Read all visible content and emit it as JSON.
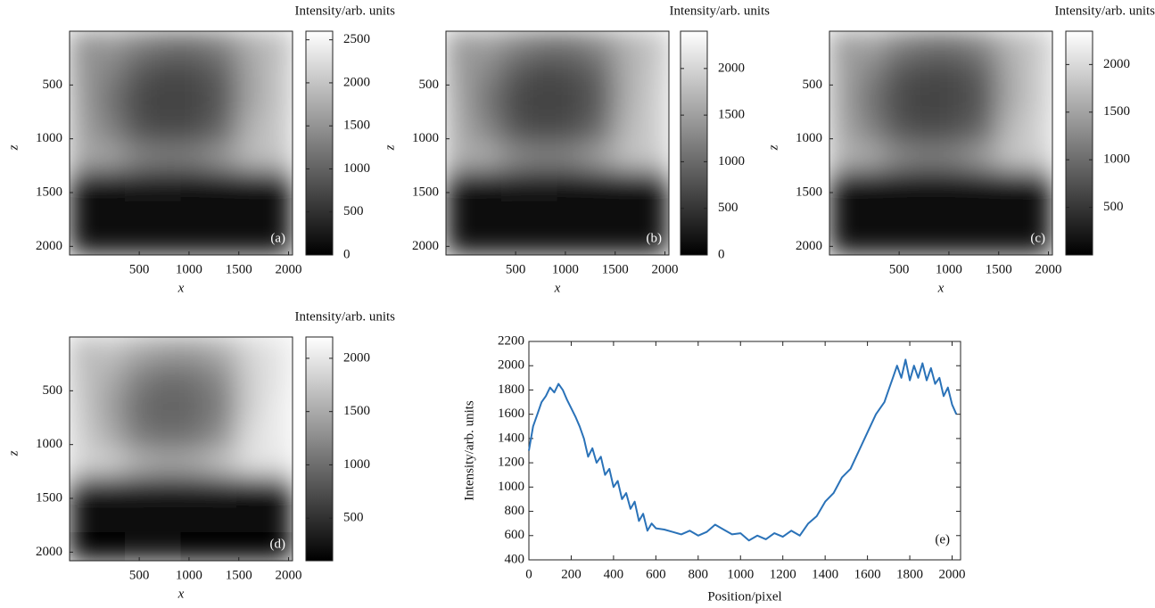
{
  "chart_data": [
    {
      "type": "heatmap",
      "colorbar_label": "Intensity/arb. units",
      "x_label": "x",
      "y_label": "z",
      "annotation": "(a)",
      "colormap": "gray",
      "x": [
        -60,
        220,
        500,
        780,
        1060,
        1340,
        1620,
        1900
      ],
      "y": [
        130,
        390,
        650,
        910,
        1170,
        1430,
        1690,
        1950
      ],
      "values": [
        [
          1500,
          1550,
          1300,
          1150,
          1150,
          1350,
          1750,
          1950
        ],
        [
          1550,
          1300,
          900,
          750,
          800,
          1000,
          1650,
          2000
        ],
        [
          1600,
          1150,
          750,
          650,
          700,
          900,
          1650,
          2000
        ],
        [
          1650,
          1300,
          850,
          750,
          800,
          1050,
          1800,
          2050
        ],
        [
          1700,
          1650,
          1350,
          1250,
          1300,
          1550,
          1900,
          2000
        ],
        [
          150,
          170,
          180,
          180,
          170,
          160,
          150,
          140
        ],
        [
          100,
          110,
          120,
          120,
          110,
          100,
          100,
          90
        ],
        [
          80,
          90,
          90,
          90,
          90,
          80,
          80,
          70
        ]
      ],
      "xlim": [
        -200,
        2040
      ],
      "ylim": [
        0,
        2080
      ],
      "xticks": [
        500,
        1000,
        1500,
        2000
      ],
      "yticks": [
        500,
        1000,
        1500,
        2000
      ],
      "clim": [
        0,
        2600
      ],
      "cticks": [
        0,
        500,
        1000,
        1500,
        2000,
        2500
      ]
    },
    {
      "type": "heatmap",
      "colorbar_label": "Intensity/arb. units",
      "x_label": "x",
      "y_label": "z",
      "annotation": "(b)",
      "colormap": "gray",
      "x": [
        -60,
        220,
        500,
        780,
        1060,
        1340,
        1620,
        1900
      ],
      "y": [
        130,
        390,
        650,
        910,
        1170,
        1430,
        1690,
        1950
      ],
      "values": [
        [
          1450,
          1500,
          1250,
          1100,
          1100,
          1300,
          1650,
          1850
        ],
        [
          1500,
          1250,
          850,
          700,
          750,
          950,
          1600,
          1900
        ],
        [
          1550,
          1100,
          700,
          600,
          650,
          850,
          1600,
          1950
        ],
        [
          1600,
          1250,
          800,
          700,
          750,
          1000,
          1700,
          1950
        ],
        [
          1650,
          1600,
          1300,
          1200,
          1250,
          1500,
          1800,
          1900
        ],
        [
          150,
          160,
          170,
          170,
          160,
          150,
          140,
          130
        ],
        [
          100,
          110,
          110,
          110,
          100,
          100,
          90,
          90
        ],
        [
          80,
          80,
          90,
          90,
          80,
          80,
          70,
          70
        ]
      ],
      "xlim": [
        -200,
        2040
      ],
      "ylim": [
        0,
        2080
      ],
      "xticks": [
        500,
        1000,
        1500,
        2000
      ],
      "yticks": [
        500,
        1000,
        1500,
        2000
      ],
      "clim": [
        0,
        2400
      ],
      "cticks": [
        0,
        500,
        1000,
        1500,
        2000
      ]
    },
    {
      "type": "heatmap",
      "colorbar_label": "Intensity/arb. units",
      "x_label": "x",
      "y_label": "z",
      "annotation": "(c)",
      "colormap": "gray",
      "x": [
        -60,
        220,
        500,
        780,
        1060,
        1340,
        1620,
        1900
      ],
      "y": [
        130,
        390,
        650,
        910,
        1170,
        1430,
        1690,
        1950
      ],
      "values": [
        [
          1450,
          1500,
          1200,
          1050,
          1050,
          1250,
          1650,
          1850
        ],
        [
          1500,
          1200,
          800,
          700,
          700,
          900,
          1550,
          1900
        ],
        [
          1500,
          1050,
          700,
          600,
          650,
          800,
          1550,
          1900
        ],
        [
          1550,
          1200,
          800,
          700,
          750,
          950,
          1700,
          1950
        ],
        [
          1650,
          1550,
          1250,
          1150,
          1200,
          1450,
          1800,
          1900
        ],
        [
          140,
          150,
          160,
          160,
          150,
          140,
          130,
          120
        ],
        [
          100,
          100,
          110,
          110,
          100,
          100,
          90,
          90
        ],
        [
          70,
          80,
          80,
          80,
          80,
          70,
          70,
          70
        ]
      ],
      "xlim": [
        -200,
        2040
      ],
      "ylim": [
        0,
        2080
      ],
      "xticks": [
        500,
        1000,
        1500,
        2000
      ],
      "yticks": [
        500,
        1000,
        1500,
        2000
      ],
      "clim": [
        0,
        2350
      ],
      "cticks": [
        500,
        1000,
        1500,
        2000
      ]
    },
    {
      "type": "heatmap",
      "colorbar_label": "Intensity/arb. units",
      "x_label": "x",
      "y_label": "z",
      "annotation": "(d)",
      "colormap": "gray",
      "x": [
        -60,
        220,
        500,
        780,
        1060,
        1340,
        1620,
        1900
      ],
      "y": [
        130,
        390,
        650,
        910,
        1170,
        1430,
        1690,
        1950
      ],
      "values": [
        [
          1650,
          1700,
          1500,
          1400,
          1400,
          1550,
          1850,
          2000
        ],
        [
          1700,
          1500,
          1150,
          1000,
          1050,
          1250,
          1800,
          2000
        ],
        [
          1750,
          1400,
          1000,
          900,
          950,
          1150,
          1800,
          2050
        ],
        [
          1800,
          1500,
          1100,
          1000,
          1050,
          1300,
          1900,
          2050
        ],
        [
          1850,
          1800,
          1550,
          1450,
          1500,
          1700,
          1950,
          2000
        ],
        [
          250,
          260,
          270,
          270,
          260,
          250,
          240,
          230
        ],
        [
          180,
          190,
          190,
          190,
          180,
          180,
          170,
          170
        ],
        [
          150,
          150,
          160,
          160,
          150,
          150,
          140,
          140
        ]
      ],
      "xlim": [
        -200,
        2040
      ],
      "ylim": [
        0,
        2080
      ],
      "xticks": [
        500,
        1000,
        1500,
        2000
      ],
      "yticks": [
        500,
        1000,
        1500,
        2000
      ],
      "clim": [
        100,
        2200
      ],
      "cticks": [
        500,
        1000,
        1500,
        2000
      ]
    },
    {
      "type": "line",
      "x_label": "Position/pixel",
      "y_label": "Intensity/arb. units",
      "annotation": "(e)",
      "color": "#2a72b8",
      "x": [
        0,
        20,
        40,
        60,
        80,
        100,
        120,
        140,
        160,
        180,
        200,
        220,
        240,
        260,
        280,
        300,
        320,
        340,
        360,
        380,
        400,
        420,
        440,
        460,
        480,
        500,
        520,
        540,
        560,
        580,
        600,
        640,
        680,
        720,
        760,
        800,
        840,
        880,
        920,
        960,
        1000,
        1040,
        1080,
        1120,
        1160,
        1200,
        1240,
        1280,
        1320,
        1360,
        1400,
        1440,
        1480,
        1520,
        1560,
        1600,
        1640,
        1680,
        1700,
        1720,
        1740,
        1760,
        1780,
        1800,
        1820,
        1840,
        1860,
        1880,
        1900,
        1920,
        1940,
        1960,
        1980,
        2000,
        2020
      ],
      "values": [
        1300,
        1500,
        1600,
        1700,
        1750,
        1820,
        1780,
        1850,
        1800,
        1720,
        1650,
        1580,
        1500,
        1400,
        1250,
        1320,
        1200,
        1250,
        1100,
        1150,
        1000,
        1050,
        900,
        950,
        820,
        880,
        720,
        780,
        640,
        700,
        660,
        650,
        630,
        610,
        640,
        600,
        630,
        690,
        650,
        610,
        620,
        560,
        600,
        570,
        620,
        590,
        640,
        600,
        700,
        760,
        880,
        950,
        1080,
        1150,
        1300,
        1450,
        1600,
        1700,
        1800,
        1900,
        2000,
        1900,
        2050,
        1880,
        2000,
        1900,
        2020,
        1880,
        1980,
        1850,
        1900,
        1750,
        1820,
        1680,
        1600
      ],
      "xlim": [
        0,
        2040
      ],
      "ylim": [
        400,
        2200
      ],
      "xticks": [
        0,
        200,
        400,
        600,
        800,
        1000,
        1200,
        1400,
        1600,
        1800,
        2000
      ],
      "yticks": [
        400,
        600,
        800,
        1000,
        1200,
        1400,
        1600,
        1800,
        2000,
        2200
      ]
    }
  ]
}
